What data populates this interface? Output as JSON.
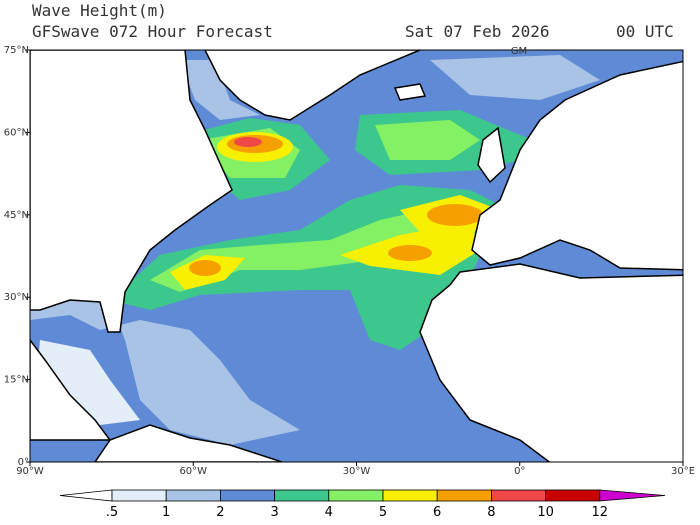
{
  "header": {
    "title": "Wave Height(m)",
    "subtitle": "GFSwave 072 Hour Forecast",
    "date": "Sat 07 Feb 2026",
    "time": "00 UTC"
  },
  "map": {
    "lon_labels": [
      "90°W",
      "60°W",
      "30°W",
      "0°",
      "30°E"
    ],
    "lat_labels": [
      "0°",
      "15°N",
      "30°N",
      "45°N",
      "60°N",
      "75°N"
    ],
    "marker": "GM"
  },
  "colorbar": {
    "labels": [
      ".5",
      "1",
      "2",
      "3",
      "4",
      "5",
      "6",
      "8",
      "10",
      "12"
    ],
    "colors": [
      "#ffffff",
      "#e4eef8",
      "#a9c3e6",
      "#5f8bd6",
      "#3cc88c",
      "#84f064",
      "#f8f000",
      "#f6a000",
      "#f04848",
      "#c80000",
      "#d000d0"
    ]
  }
}
